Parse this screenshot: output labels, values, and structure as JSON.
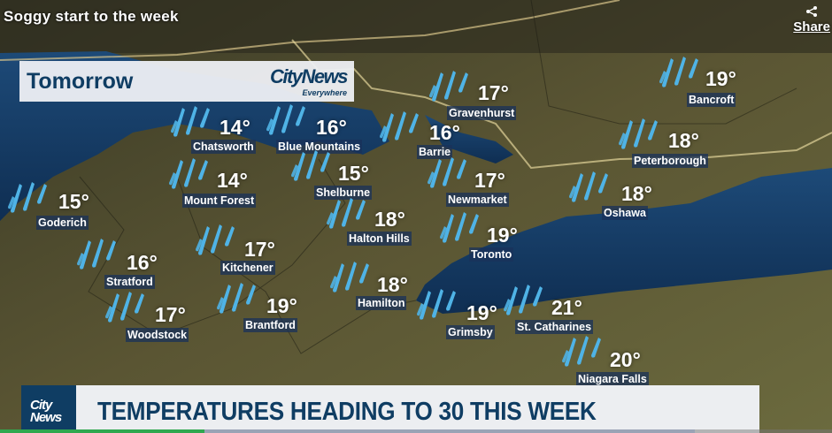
{
  "video": {
    "title": "Soggy start to the week",
    "share_label": "Share",
    "progress_percent": 24.6,
    "buffered_percent": 83.5
  },
  "graphic": {
    "day": "Tomorrow",
    "logo_top": "CityNews",
    "logo_bottom": "Everywhere"
  },
  "lower_third": {
    "badge_line1": "City",
    "badge_line2": "News",
    "headline": "TEMPERATURES HEADING TO 30 THIS WEEK"
  },
  "colors": {
    "brand": "#0f3d63",
    "rain": "#4fb3e6",
    "progress": "#2fa84f"
  },
  "cities": [
    {
      "name": "Bancroft",
      "temp": "19°",
      "icon": "rain-icon"
    },
    {
      "name": "Gravenhurst",
      "temp": "17°",
      "icon": "rain-icon"
    },
    {
      "name": "Chatsworth",
      "temp": "14°",
      "icon": "rain-icon"
    },
    {
      "name": "Blue Mountains",
      "temp": "16°",
      "icon": "rain-icon"
    },
    {
      "name": "Barrie",
      "temp": "16°",
      "icon": "rain-icon"
    },
    {
      "name": "Peterborough",
      "temp": "18°",
      "icon": "rain-icon"
    },
    {
      "name": "Shelburne",
      "temp": "15°",
      "icon": "rain-icon"
    },
    {
      "name": "Mount Forest",
      "temp": "14°",
      "icon": "rain-icon"
    },
    {
      "name": "Newmarket",
      "temp": "17°",
      "icon": "rain-icon"
    },
    {
      "name": "Oshawa",
      "temp": "18°",
      "icon": "rain-icon"
    },
    {
      "name": "Goderich",
      "temp": "15°",
      "icon": "rain-icon"
    },
    {
      "name": "Halton Hills",
      "temp": "18°",
      "icon": "rain-icon"
    },
    {
      "name": "Toronto",
      "temp": "19°",
      "icon": "rain-icon"
    },
    {
      "name": "Kitchener",
      "temp": "17°",
      "icon": "rain-icon"
    },
    {
      "name": "Stratford",
      "temp": "16°",
      "icon": "rain-icon"
    },
    {
      "name": "Hamilton",
      "temp": "18°",
      "icon": "rain-icon"
    },
    {
      "name": "Brantford",
      "temp": "19°",
      "icon": "rain-icon"
    },
    {
      "name": "Woodstock",
      "temp": "17°",
      "icon": "rain-icon"
    },
    {
      "name": "Grimsby",
      "temp": "19°",
      "icon": "rain-icon"
    },
    {
      "name": "St. Catharines",
      "temp": "21°",
      "icon": "rain-icon"
    },
    {
      "name": "Niagara Falls",
      "temp": "20°",
      "icon": "rain-icon"
    }
  ]
}
